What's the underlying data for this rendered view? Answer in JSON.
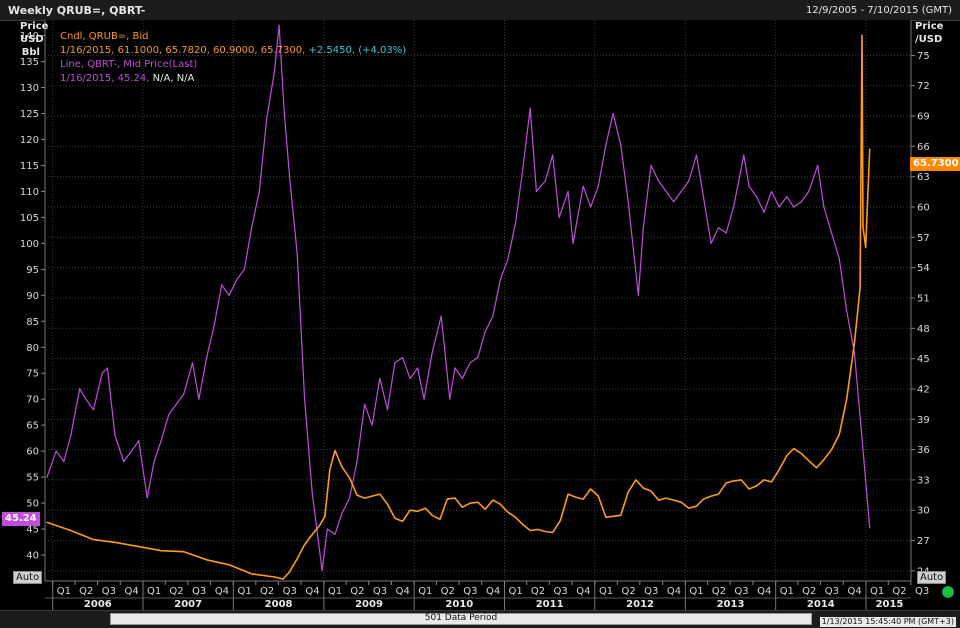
{
  "window": {
    "title": "Weekly QRUB=, QBRT-",
    "date_range": "12/9/2005 - 7/10/2015 (GMT)"
  },
  "legend": {
    "orange_series_name": "Cndl, QRUB=, Bid",
    "orange_values": "1/16/2015, 61.1000, 65.7820, 60.9000, 65.7300,",
    "orange_change": "+2.5450, (+4.03%)",
    "purple_series_name": "Line, QBRT-, Mid Price(Last)",
    "purple_values": "1/16/2015, 45.24,",
    "purple_na": "N/A, N/A"
  },
  "axes": {
    "left_header": [
      "Price",
      "USD",
      "Bbl"
    ],
    "right_header": [
      "Price",
      "/USD"
    ],
    "auto_label": "Auto"
  },
  "tags": {
    "left_last": "45.24",
    "right_last": "65.7300"
  },
  "footer": {
    "data_period": "501 Data Period",
    "timestamp": "1/13/2015 15:45:40 PM   (GMT+3)"
  },
  "colors": {
    "background": "#000000",
    "grid": "#3c3c3c",
    "rub": "#ff9a1a",
    "brent": "#c24ddd",
    "change": "#39c8d8"
  },
  "chart_data": {
    "type": "line",
    "title": "Weekly QRUB=, QBRT-",
    "x_range": [
      "2005-12-09",
      "2015-07-10"
    ],
    "x_ticks_quarters": [
      "Q1",
      "Q2",
      "Q3",
      "Q4"
    ],
    "x_year_labels": [
      "2006",
      "2007",
      "2008",
      "2009",
      "2010",
      "2011",
      "2012",
      "2013",
      "2014",
      "2015"
    ],
    "x_extra_quarter_labels": [
      "Q1",
      "Q2",
      "Q3"
    ],
    "left_axis": {
      "label": "Price USD Bbl",
      "ylim": [
        35,
        143
      ],
      "ticks": [
        40,
        45,
        50,
        55,
        60,
        65,
        70,
        75,
        80,
        85,
        90,
        95,
        100,
        105,
        110,
        115,
        120,
        125,
        130,
        135,
        140
      ]
    },
    "right_axis": {
      "label": "Price /USD",
      "ylim": [
        23,
        78.5
      ],
      "ticks": [
        24,
        27,
        30,
        33,
        36,
        39,
        42,
        45,
        48,
        51,
        54,
        57,
        60,
        63,
        66,
        69,
        72,
        75
      ]
    },
    "grid": true,
    "legend_position": "top-left",
    "series": [
      {
        "name": "Line, QBRT-, Mid Price(Last)",
        "axis": "left",
        "points": [
          [
            "2005-12-09",
            55
          ],
          [
            "2006-01-15",
            60
          ],
          [
            "2006-02-15",
            58
          ],
          [
            "2006-03-15",
            63
          ],
          [
            "2006-04-20",
            72
          ],
          [
            "2006-05-15",
            70
          ],
          [
            "2006-06-15",
            68
          ],
          [
            "2006-07-20",
            75
          ],
          [
            "2006-08-10",
            76
          ],
          [
            "2006-09-10",
            63
          ],
          [
            "2006-10-15",
            58
          ],
          [
            "2006-11-15",
            60
          ],
          [
            "2006-12-15",
            62
          ],
          [
            "2007-01-18",
            51
          ],
          [
            "2007-02-15",
            58
          ],
          [
            "2007-03-15",
            62
          ],
          [
            "2007-04-15",
            67
          ],
          [
            "2007-05-15",
            69
          ],
          [
            "2007-06-15",
            71
          ],
          [
            "2007-07-20",
            77
          ],
          [
            "2007-08-15",
            70
          ],
          [
            "2007-09-15",
            78
          ],
          [
            "2007-10-15",
            84
          ],
          [
            "2007-11-15",
            92
          ],
          [
            "2007-12-15",
            90
          ],
          [
            "2008-01-15",
            93
          ],
          [
            "2008-02-15",
            95
          ],
          [
            "2008-03-15",
            103
          ],
          [
            "2008-04-15",
            110
          ],
          [
            "2008-05-15",
            124
          ],
          [
            "2008-06-15",
            133
          ],
          [
            "2008-07-04",
            142
          ],
          [
            "2008-07-25",
            125
          ],
          [
            "2008-08-15",
            113
          ],
          [
            "2008-09-15",
            98
          ],
          [
            "2008-10-15",
            70
          ],
          [
            "2008-11-15",
            52
          ],
          [
            "2008-12-25",
            37
          ],
          [
            "2009-01-15",
            45
          ],
          [
            "2009-02-15",
            44
          ],
          [
            "2009-03-15",
            48
          ],
          [
            "2009-04-15",
            51
          ],
          [
            "2009-05-15",
            58
          ],
          [
            "2009-06-15",
            69
          ],
          [
            "2009-07-15",
            65
          ],
          [
            "2009-08-15",
            74
          ],
          [
            "2009-09-15",
            68
          ],
          [
            "2009-10-15",
            77
          ],
          [
            "2009-11-15",
            78
          ],
          [
            "2009-12-15",
            74
          ],
          [
            "2010-01-15",
            76
          ],
          [
            "2010-02-10",
            70
          ],
          [
            "2010-03-15",
            79
          ],
          [
            "2010-04-20",
            86
          ],
          [
            "2010-05-25",
            70
          ],
          [
            "2010-06-15",
            76
          ],
          [
            "2010-07-15",
            74
          ],
          [
            "2010-08-15",
            77
          ],
          [
            "2010-09-15",
            78
          ],
          [
            "2010-10-15",
            83
          ],
          [
            "2010-11-15",
            86
          ],
          [
            "2010-12-15",
            93
          ],
          [
            "2011-01-15",
            97
          ],
          [
            "2011-02-15",
            104
          ],
          [
            "2011-03-15",
            114
          ],
          [
            "2011-04-15",
            126
          ],
          [
            "2011-05-10",
            110
          ],
          [
            "2011-06-15",
            112
          ],
          [
            "2011-07-15",
            117
          ],
          [
            "2011-08-10",
            105
          ],
          [
            "2011-09-15",
            110
          ],
          [
            "2011-10-05",
            100
          ],
          [
            "2011-11-15",
            111
          ],
          [
            "2011-12-15",
            107
          ],
          [
            "2012-01-15",
            111
          ],
          [
            "2012-02-15",
            119
          ],
          [
            "2012-03-15",
            125
          ],
          [
            "2012-04-15",
            119
          ],
          [
            "2012-05-15",
            108
          ],
          [
            "2012-06-25",
            90
          ],
          [
            "2012-07-15",
            103
          ],
          [
            "2012-08-15",
            115
          ],
          [
            "2012-09-15",
            112
          ],
          [
            "2012-10-15",
            110
          ],
          [
            "2012-11-15",
            108
          ],
          [
            "2012-12-15",
            110
          ],
          [
            "2013-01-15",
            112
          ],
          [
            "2013-02-15",
            117
          ],
          [
            "2013-03-15",
            109
          ],
          [
            "2013-04-15",
            100
          ],
          [
            "2013-05-15",
            103
          ],
          [
            "2013-06-15",
            102
          ],
          [
            "2013-07-15",
            107
          ],
          [
            "2013-08-25",
            117
          ],
          [
            "2013-09-15",
            111
          ],
          [
            "2013-10-15",
            109
          ],
          [
            "2013-11-15",
            106
          ],
          [
            "2013-12-15",
            110
          ],
          [
            "2014-01-15",
            107
          ],
          [
            "2014-02-15",
            109
          ],
          [
            "2014-03-15",
            107
          ],
          [
            "2014-04-15",
            108
          ],
          [
            "2014-05-15",
            110
          ],
          [
            "2014-06-20",
            115
          ],
          [
            "2014-07-15",
            107
          ],
          [
            "2014-08-15",
            102
          ],
          [
            "2014-09-15",
            97
          ],
          [
            "2014-10-15",
            87
          ],
          [
            "2014-11-15",
            79
          ],
          [
            "2014-12-15",
            63
          ],
          [
            "2015-01-16",
            45.24
          ]
        ]
      },
      {
        "name": "Cndl, QRUB=, Bid",
        "axis": "right",
        "points": [
          [
            "2005-12-09",
            28.8
          ],
          [
            "2006-03-15",
            28.0
          ],
          [
            "2006-06-15",
            27.1
          ],
          [
            "2006-09-15",
            26.8
          ],
          [
            "2006-12-15",
            26.4
          ],
          [
            "2007-03-15",
            26.0
          ],
          [
            "2007-06-15",
            25.9
          ],
          [
            "2007-09-15",
            25.1
          ],
          [
            "2007-12-15",
            24.6
          ],
          [
            "2008-03-15",
            23.7
          ],
          [
            "2008-06-15",
            23.4
          ],
          [
            "2008-07-20",
            23.2
          ],
          [
            "2008-08-15",
            23.9
          ],
          [
            "2008-09-15",
            25.2
          ],
          [
            "2008-10-15",
            26.6
          ],
          [
            "2008-11-15",
            27.6
          ],
          [
            "2008-12-15",
            28.5
          ],
          [
            "2009-01-05",
            29.4
          ],
          [
            "2009-01-25",
            34.0
          ],
          [
            "2009-02-15",
            35.9
          ],
          [
            "2009-03-15",
            34.3
          ],
          [
            "2009-04-15",
            33.2
          ],
          [
            "2009-05-15",
            31.5
          ],
          [
            "2009-06-15",
            31.2
          ],
          [
            "2009-07-15",
            31.4
          ],
          [
            "2009-08-15",
            31.6
          ],
          [
            "2009-09-15",
            30.6
          ],
          [
            "2009-10-15",
            29.2
          ],
          [
            "2009-11-15",
            28.9
          ],
          [
            "2009-12-15",
            30.0
          ],
          [
            "2010-01-15",
            29.9
          ],
          [
            "2010-02-15",
            30.2
          ],
          [
            "2010-03-15",
            29.5
          ],
          [
            "2010-04-15",
            29.1
          ],
          [
            "2010-05-15",
            31.1
          ],
          [
            "2010-06-15",
            31.2
          ],
          [
            "2010-07-15",
            30.3
          ],
          [
            "2010-08-15",
            30.7
          ],
          [
            "2010-09-15",
            30.8
          ],
          [
            "2010-10-15",
            30.1
          ],
          [
            "2010-11-15",
            31.0
          ],
          [
            "2010-12-15",
            30.6
          ],
          [
            "2011-01-15",
            29.8
          ],
          [
            "2011-02-15",
            29.3
          ],
          [
            "2011-03-15",
            28.6
          ],
          [
            "2011-04-15",
            28.0
          ],
          [
            "2011-05-15",
            28.1
          ],
          [
            "2011-06-15",
            27.9
          ],
          [
            "2011-07-15",
            27.8
          ],
          [
            "2011-08-15",
            29.0
          ],
          [
            "2011-09-15",
            31.6
          ],
          [
            "2011-10-15",
            31.3
          ],
          [
            "2011-11-15",
            31.1
          ],
          [
            "2011-12-15",
            32.1
          ],
          [
            "2012-01-15",
            31.4
          ],
          [
            "2012-02-15",
            29.3
          ],
          [
            "2012-03-15",
            29.4
          ],
          [
            "2012-04-15",
            29.5
          ],
          [
            "2012-05-15",
            31.8
          ],
          [
            "2012-06-15",
            33.0
          ],
          [
            "2012-07-15",
            32.2
          ],
          [
            "2012-08-15",
            31.9
          ],
          [
            "2012-09-15",
            31.0
          ],
          [
            "2012-10-15",
            31.2
          ],
          [
            "2012-11-15",
            31.0
          ],
          [
            "2012-12-15",
            30.8
          ],
          [
            "2013-01-15",
            30.2
          ],
          [
            "2013-02-15",
            30.4
          ],
          [
            "2013-03-15",
            31.1
          ],
          [
            "2013-04-15",
            31.4
          ],
          [
            "2013-05-15",
            31.6
          ],
          [
            "2013-06-15",
            32.7
          ],
          [
            "2013-07-15",
            32.9
          ],
          [
            "2013-08-15",
            33.0
          ],
          [
            "2013-09-15",
            32.1
          ],
          [
            "2013-10-15",
            32.4
          ],
          [
            "2013-11-15",
            33.0
          ],
          [
            "2013-12-15",
            32.8
          ],
          [
            "2014-01-15",
            34.0
          ],
          [
            "2014-02-15",
            35.4
          ],
          [
            "2014-03-15",
            36.1
          ],
          [
            "2014-04-15",
            35.6
          ],
          [
            "2014-05-15",
            34.9
          ],
          [
            "2014-06-15",
            34.2
          ],
          [
            "2014-07-15",
            35.0
          ],
          [
            "2014-08-15",
            36.0
          ],
          [
            "2014-09-15",
            37.5
          ],
          [
            "2014-10-15",
            41.0
          ],
          [
            "2014-11-15",
            46.5
          ],
          [
            "2014-12-08",
            52.0
          ],
          [
            "2014-12-16",
            77.0
          ],
          [
            "2014-12-20",
            58.0
          ],
          [
            "2014-12-31",
            56.0
          ],
          [
            "2015-01-16",
            65.73
          ]
        ]
      }
    ]
  }
}
